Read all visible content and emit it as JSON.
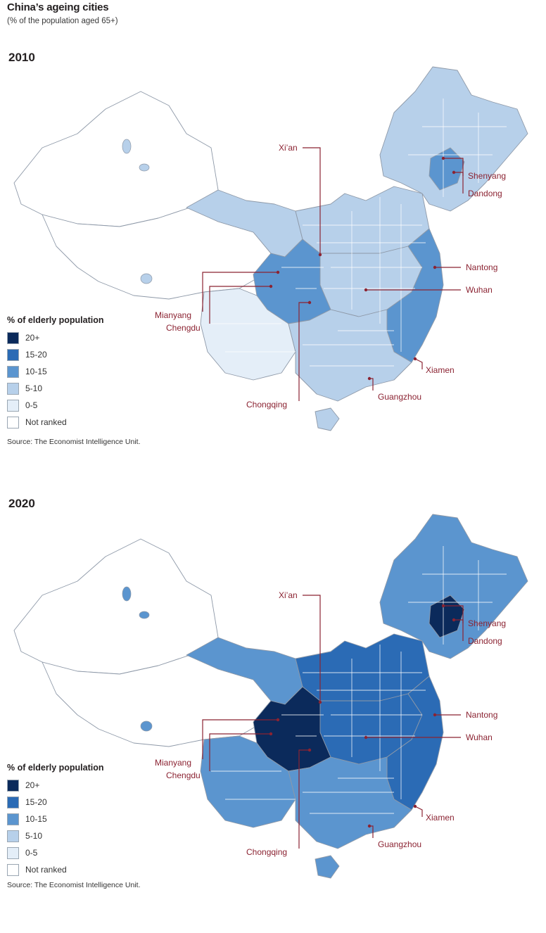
{
  "title": "China’s ageing cities",
  "subtitle": "(% of the population aged 65+)",
  "legend": {
    "title": "% of elderly population",
    "items": [
      {
        "label": "20+",
        "color": "#0b2a5b"
      },
      {
        "label": "15-20",
        "color": "#2b6bb5"
      },
      {
        "label": "10-15",
        "color": "#5b95cf"
      },
      {
        "label": "5-10",
        "color": "#b7d0ea"
      },
      {
        "label": "0-5",
        "color": "#e4eef8"
      },
      {
        "label": "Not ranked",
        "color": "#ffffff"
      }
    ]
  },
  "source": "Source: The Economist Intelligence Unit.",
  "cities": [
    "Xi’an",
    "Shenyang",
    "Dandong",
    "Nantong",
    "Wuhan",
    "Mianyang",
    "Chengdu",
    "Xiamen",
    "Guangzhou",
    "Chongqing"
  ],
  "maps": [
    {
      "year": "2010",
      "regions": {
        "northeast": "#b7d0ea",
        "northeast_core": "#5b95cf",
        "north": "#b7d0ea",
        "central": "#b7d0ea",
        "sichuan": "#5b95cf",
        "east": "#5b95cf",
        "south": "#b7d0ea",
        "southwest": "#e4eef8",
        "xinjiang": "#ffffff",
        "tibet": "#ffffff",
        "qinghai": "#b7d0ea"
      }
    },
    {
      "year": "2020",
      "regions": {
        "northeast": "#5b95cf",
        "northeast_core": "#0b2a5b",
        "north": "#2b6bb5",
        "central": "#2b6bb5",
        "sichuan": "#0b2a5b",
        "east": "#2b6bb5",
        "south": "#5b95cf",
        "southwest": "#5b95cf",
        "xinjiang": "#ffffff",
        "tibet": "#ffffff",
        "qinghai": "#5b95cf"
      }
    }
  ]
}
